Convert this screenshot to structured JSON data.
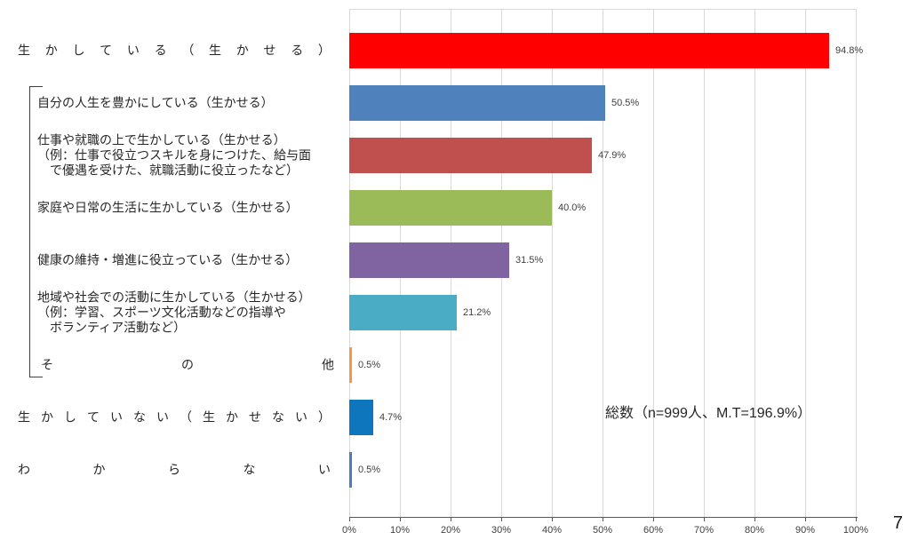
{
  "chart_data": {
    "type": "bar",
    "orientation": "horizontal",
    "title": "",
    "xlabel": "",
    "ylabel": "",
    "xlim": [
      0,
      100
    ],
    "grid": true,
    "x_ticks": [
      "0%",
      "10%",
      "20%",
      "30%",
      "40%",
      "50%",
      "60%",
      "70%",
      "80%",
      "90%",
      "100%"
    ],
    "annotation": "総数（n=999人、M.T=196.9%）",
    "bars": [
      {
        "label_lines": [
          "生かしている（生かせる）"
        ],
        "value": 94.8,
        "value_label": "94.8%",
        "color": "#ff0000",
        "spread": true,
        "sub_item": false
      },
      {
        "label_lines": [
          "自分の人生を豊かにしている（生かせる）"
        ],
        "value": 50.5,
        "value_label": "50.5%",
        "color": "#4f81bd",
        "spread": false,
        "sub_item": true
      },
      {
        "label_lines": [
          "仕事や就職の上で生かしている（生かせる）",
          "（例：仕事で役立つスキルを身につけた、給与面",
          "　で優遇を受けた、就職活動に役立ったなど）"
        ],
        "value": 47.9,
        "value_label": "47.9%",
        "color": "#c0504d",
        "spread": false,
        "sub_item": true
      },
      {
        "label_lines": [
          "家庭や日常の生活に生かしている（生かせる）"
        ],
        "value": 40.0,
        "value_label": "40.0%",
        "color": "#9bbb59",
        "spread": false,
        "sub_item": true
      },
      {
        "label_lines": [
          "健康の維持・増進に役立っている（生かせる）"
        ],
        "value": 31.5,
        "value_label": "31.5%",
        "color": "#8064a2",
        "spread": false,
        "sub_item": true
      },
      {
        "label_lines": [
          "地域や社会での活動に生かしている（生かせる）",
          "（例：学習、スポーツ文化活動などの指導や",
          "　ボランティア活動など）"
        ],
        "value": 21.2,
        "value_label": "21.2%",
        "color": "#4bacc6",
        "spread": false,
        "sub_item": true
      },
      {
        "label_lines": [
          "その他"
        ],
        "value": 0.5,
        "value_label": "0.5%",
        "color": "#f79646",
        "spread": true,
        "sub_item": true
      },
      {
        "label_lines": [
          "生かしていない（生かせない）"
        ],
        "value": 4.7,
        "value_label": "4.7%",
        "color": "#0e76bd",
        "spread": true,
        "sub_item": false
      },
      {
        "label_lines": [
          "わからない"
        ],
        "value": 0.5,
        "value_label": "0.5%",
        "color": "#4a7cbe",
        "spread": true,
        "sub_item": false
      }
    ]
  },
  "page_number": "7"
}
